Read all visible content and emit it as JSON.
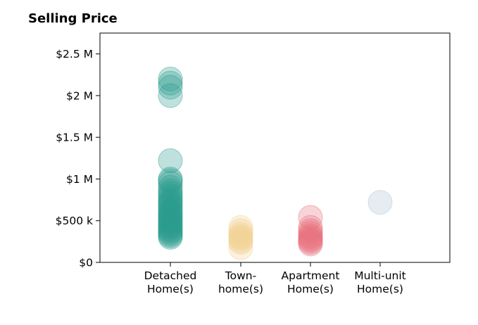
{
  "chart_data": {
    "type": "scatter",
    "title": "Selling Price",
    "xlabel": "",
    "ylabel": "",
    "ylim": [
      0,
      2750000
    ],
    "y_ticks": [
      {
        "value": 0,
        "label": "$0"
      },
      {
        "value": 500000,
        "label": "$500 k"
      },
      {
        "value": 1000000,
        "label": "$1 M"
      },
      {
        "value": 1500000,
        "label": "$1.5 M"
      },
      {
        "value": 2000000,
        "label": "$2 M"
      },
      {
        "value": 2500000,
        "label": "$2.5 M"
      }
    ],
    "categories": [
      {
        "lines": [
          "Detached",
          "Home(s)"
        ]
      },
      {
        "lines": [
          "Town-",
          "home(s)"
        ]
      },
      {
        "lines": [
          "Apartment",
          "Home(s)"
        ]
      },
      {
        "lines": [
          "Multi-unit",
          "Home(s)"
        ]
      }
    ],
    "grid": false,
    "legend": "none",
    "series": [
      {
        "color": "#2a9d8f",
        "values": [
          2000000,
          2100000,
          2150000,
          2200000,
          1220000,
          1000000,
          980000,
          950000,
          900000,
          860000,
          830000,
          800000,
          770000,
          740000,
          720000,
          700000,
          680000,
          650000,
          620000,
          600000,
          580000,
          560000,
          540000,
          520000,
          500000,
          480000,
          460000,
          440000,
          420000,
          400000,
          380000,
          360000,
          340000,
          320000,
          300000
        ]
      },
      {
        "color": "#f2d091",
        "values": [
          420000,
          380000,
          340000,
          310000,
          290000,
          260000,
          240000,
          175000
        ]
      },
      {
        "color": "#e76f7d",
        "values": [
          540000,
          420000,
          380000,
          350000,
          320000,
          300000,
          280000,
          260000,
          240000,
          220000
        ]
      },
      {
        "color": "#a9c1d4",
        "values": [
          720000
        ]
      }
    ]
  }
}
